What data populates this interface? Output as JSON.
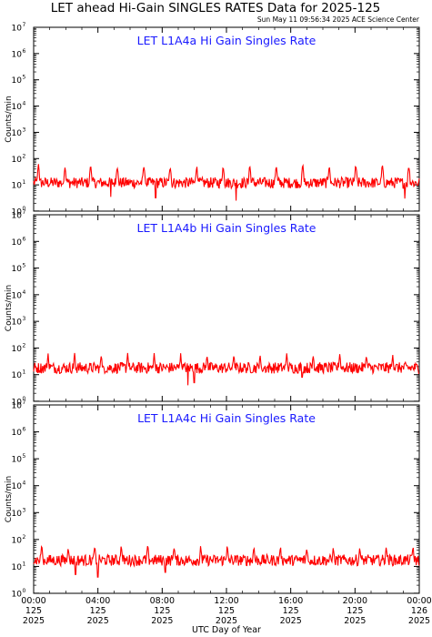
{
  "header": {
    "title": "LET ahead Hi-Gain SINGLES RATES Data for 2025-125",
    "timestamp": "Sun May 11 09:56:34 2025 ACE Science Center"
  },
  "colors": {
    "data": "#ff0000",
    "panel_label": "#1a1aff",
    "axes": "#000000"
  },
  "chart_data": [
    {
      "type": "line",
      "title": "LET L1A4a Hi Gain Singles Rate",
      "ylabel": "Counts/min",
      "yscale": "log",
      "ylim": [
        1,
        10000000
      ],
      "xlim": [
        0,
        24
      ],
      "ytick_exponents": [
        "0",
        "1",
        "2",
        "3",
        "4",
        "5",
        "6",
        "7"
      ],
      "series": [
        {
          "color": "#ff0000",
          "baseline": 12,
          "spike_peak": 60,
          "spike_times_hours": [
            0.3,
            1.95,
            3.55,
            5.2,
            6.85,
            8.5,
            10.15,
            11.8,
            13.45,
            15.1,
            16.75,
            18.4,
            20.05,
            21.7,
            23.35
          ],
          "dips": [
            [
              4.8,
              3.5
            ],
            [
              7.6,
              3.2
            ],
            [
              12.6,
              2.5
            ],
            [
              23.1,
              3.0
            ]
          ]
        }
      ]
    },
    {
      "type": "line",
      "title": "LET L1A4b Hi Gain Singles Rate",
      "ylabel": "Counts/min",
      "yscale": "log",
      "ylim": [
        1,
        10000000
      ],
      "xlim": [
        0,
        24
      ],
      "ytick_exponents": [
        "0",
        "1",
        "2",
        "3",
        "4",
        "5",
        "6",
        "7"
      ],
      "series": [
        {
          "color": "#ff0000",
          "baseline": 18,
          "spike_peak": 60,
          "spike_times_hours": [
            0.9,
            2.55,
            4.2,
            5.85,
            7.5,
            9.15,
            10.8,
            12.45,
            14.1,
            15.75,
            17.4,
            19.05,
            20.7,
            22.35
          ],
          "dips": [
            [
              9.6,
              4.0
            ],
            [
              10.0,
              5.0
            ],
            [
              16.7,
              8.0
            ]
          ]
        }
      ]
    },
    {
      "type": "line",
      "title": "LET L1A4c Hi Gain Singles Rate",
      "ylabel": "Counts/min",
      "yscale": "log",
      "ylim": [
        1,
        10000000
      ],
      "xlim": [
        0,
        24
      ],
      "ytick_exponents": [
        "0",
        "1",
        "2",
        "3",
        "4",
        "5",
        "6",
        "7"
      ],
      "series": [
        {
          "color": "#ff0000",
          "baseline": 17,
          "spike_peak": 60,
          "spike_times_hours": [
            0.5,
            2.15,
            3.8,
            5.45,
            7.1,
            8.75,
            10.4,
            12.05,
            13.7,
            15.35,
            17.0,
            18.65,
            20.3,
            21.95,
            23.6
          ],
          "dips": [
            [
              2.6,
              5.0
            ],
            [
              4.0,
              4.0
            ],
            [
              8.2,
              6.0
            ]
          ]
        }
      ]
    }
  ],
  "x_axis": {
    "label": "UTC Day of Year",
    "ticks": [
      {
        "hour": 0,
        "time": "00:00",
        "day": "125",
        "year": "2025"
      },
      {
        "hour": 4,
        "time": "04:00",
        "day": "125",
        "year": "2025"
      },
      {
        "hour": 8,
        "time": "08:00",
        "day": "125",
        "year": "2025"
      },
      {
        "hour": 12,
        "time": "12:00",
        "day": "125",
        "year": "2025"
      },
      {
        "hour": 16,
        "time": "16:00",
        "day": "125",
        "year": "2025"
      },
      {
        "hour": 20,
        "time": "20:00",
        "day": "125",
        "year": "2025"
      },
      {
        "hour": 24,
        "time": "00:00",
        "day": "126",
        "year": "2025"
      }
    ]
  }
}
